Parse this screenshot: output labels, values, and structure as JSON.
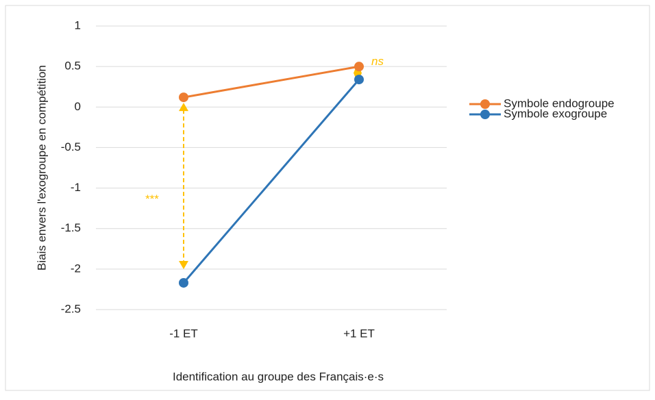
{
  "chart_data": {
    "type": "line",
    "y_axis_label": "Biais envers l'exogroupe en compétition",
    "x_axis_label": "Identification au groupe des Français·e·s",
    "categories": [
      "-1 ET",
      "+1 ET"
    ],
    "series": [
      {
        "name": "Symbole endogroupe",
        "color": "#ed7d31",
        "values": [
          0.12,
          0.5
        ]
      },
      {
        "name": "Symbole exogroupe",
        "color": "#2e75b6",
        "values": [
          -2.17,
          0.34
        ]
      }
    ],
    "ylim": [
      -2.5,
      1
    ],
    "yticks": [
      -2.5,
      -2,
      -1.5,
      -1,
      -0.5,
      0,
      0.5,
      1
    ],
    "grid": true,
    "legend": "right",
    "annotations": [
      {
        "text": "***",
        "color": "#ffc000"
      },
      {
        "text": "ns",
        "color": "#ffc000"
      }
    ]
  }
}
